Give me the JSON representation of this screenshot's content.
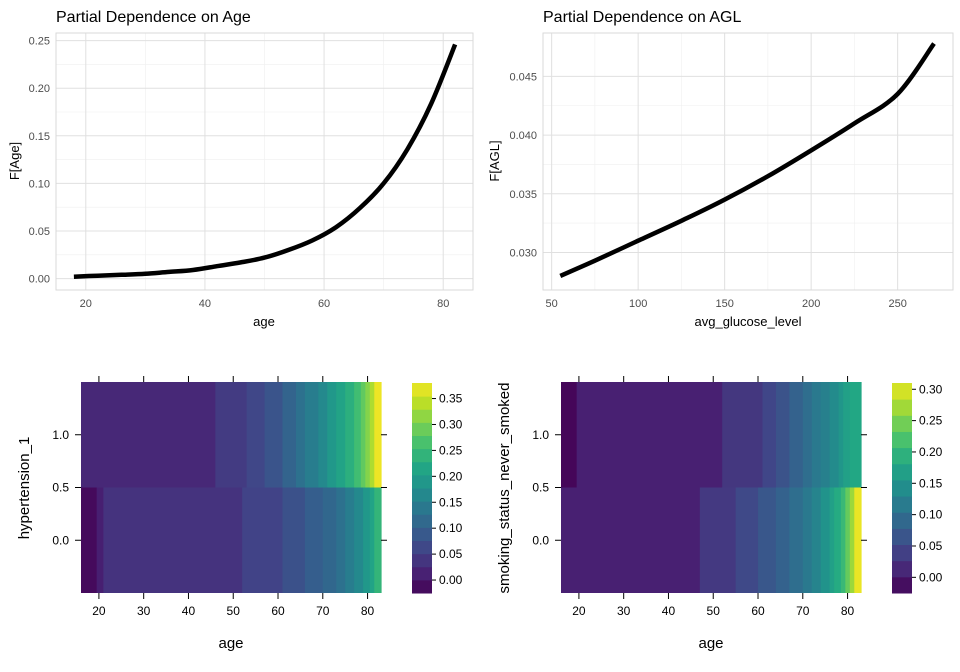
{
  "chart_data": [
    {
      "type": "line",
      "title": "Partial Dependence on Age",
      "xlabel": "age",
      "ylabel": "F[Age]",
      "xlim": [
        15,
        85
      ],
      "ylim": [
        -0.012,
        0.258
      ],
      "xticks": [
        20,
        40,
        60,
        80
      ],
      "yticks": [
        0.0,
        0.05,
        0.1,
        0.15,
        0.2,
        0.25
      ],
      "ytick_labels": [
        "0.00",
        "0.05",
        "0.10",
        "0.15",
        "0.20",
        "0.25"
      ],
      "grid": true,
      "x": [
        18,
        22,
        26,
        30,
        34,
        38,
        42,
        46,
        50,
        54,
        58,
        62,
        66,
        70,
        74,
        78,
        82
      ],
      "y": [
        0.002,
        0.003,
        0.004,
        0.005,
        0.007,
        0.009,
        0.013,
        0.017,
        0.022,
        0.03,
        0.04,
        0.054,
        0.074,
        0.1,
        0.136,
        0.184,
        0.246
      ]
    },
    {
      "type": "line",
      "title": "Partial Dependence on AGL",
      "xlabel": "avg_glucose_level",
      "ylabel": "F[AGL]",
      "xlim": [
        45,
        282
      ],
      "ylim": [
        0.0268,
        0.0487
      ],
      "xticks": [
        50,
        100,
        150,
        200,
        250
      ],
      "yticks": [
        0.03,
        0.035,
        0.04,
        0.045
      ],
      "ytick_labels": [
        "0.030",
        "0.035",
        "0.040",
        "0.045"
      ],
      "grid": true,
      "x": [
        55,
        75,
        100,
        125,
        150,
        175,
        200,
        225,
        250,
        271
      ],
      "y": [
        0.028,
        0.0293,
        0.031,
        0.0327,
        0.0345,
        0.0365,
        0.0387,
        0.041,
        0.0435,
        0.0478
      ]
    },
    {
      "type": "heatmap",
      "xlabel": "age",
      "ylabel": "hypertension_1",
      "xlim": [
        16,
        83
      ],
      "ylim": [
        -0.5,
        1.5
      ],
      "xticks": [
        20,
        30,
        40,
        50,
        60,
        70,
        80
      ],
      "yticks": [
        0.0,
        0.5,
        1.0
      ],
      "ytick_labels": [
        "0.0",
        "0.5",
        "1.0"
      ],
      "colorbar": {
        "min": -0.025,
        "max": 0.38,
        "ticks": [
          0.0,
          0.05,
          0.1,
          0.15,
          0.2,
          0.25,
          0.3,
          0.35
        ],
        "tick_labels": [
          "0.00",
          "0.05",
          "0.10",
          "0.15",
          "0.20",
          "0.25",
          "0.30",
          "0.35"
        ]
      },
      "rows": [
        {
          "y_range": [
            -0.5,
            0.5
          ],
          "x_edges": [
            16,
            19.5,
            21,
            52,
            61,
            66,
            70,
            73,
            75,
            77,
            79,
            80.5,
            81.5,
            83
          ],
          "values": [
            -0.015,
            0.01,
            0.035,
            0.055,
            0.075,
            0.095,
            0.11,
            0.125,
            0.145,
            0.165,
            0.19,
            0.21,
            0.24
          ]
        },
        {
          "y_range": [
            0.5,
            1.5
          ],
          "x_edges": [
            16,
            46,
            53,
            57,
            61,
            64,
            66,
            69,
            71,
            73,
            75,
            77,
            78.5,
            79.5,
            80.5,
            81.5,
            83
          ],
          "values": [
            0.02,
            0.045,
            0.06,
            0.08,
            0.105,
            0.125,
            0.145,
            0.165,
            0.19,
            0.21,
            0.23,
            0.255,
            0.28,
            0.305,
            0.33,
            0.37
          ]
        }
      ]
    },
    {
      "type": "heatmap",
      "xlabel": "age",
      "ylabel": "smoking_status_never_smoked",
      "xlim": [
        16,
        83
      ],
      "ylim": [
        -0.5,
        1.5
      ],
      "xticks": [
        20,
        30,
        40,
        50,
        60,
        70,
        80
      ],
      "yticks": [
        0.0,
        0.5,
        1.0
      ],
      "ytick_labels": [
        "0.0",
        "0.5",
        "1.0"
      ],
      "colorbar": {
        "min": -0.025,
        "max": 0.31,
        "ticks": [
          0.0,
          0.05,
          0.1,
          0.15,
          0.2,
          0.25,
          0.3
        ],
        "tick_labels": [
          "0.00",
          "0.05",
          "0.10",
          "0.15",
          "0.20",
          "0.25",
          "0.30"
        ]
      },
      "rows": [
        {
          "y_range": [
            -0.5,
            0.5
          ],
          "x_edges": [
            16,
            47,
            55,
            60,
            64,
            67,
            70,
            72,
            74,
            76,
            77,
            78.5,
            79.5,
            80.5,
            81.5,
            83
          ],
          "values": [
            0.005,
            0.03,
            0.048,
            0.065,
            0.08,
            0.095,
            0.11,
            0.125,
            0.145,
            0.165,
            0.18,
            0.2,
            0.23,
            0.26,
            0.3
          ]
        },
        {
          "y_range": [
            0.5,
            1.5
          ],
          "x_edges": [
            16,
            19.5,
            52,
            61,
            64,
            67,
            70,
            72,
            74,
            76,
            78,
            79,
            80.5,
            83
          ],
          "values": [
            -0.02,
            0.005,
            0.028,
            0.045,
            0.06,
            0.08,
            0.095,
            0.11,
            0.12,
            0.135,
            0.15,
            0.165,
            0.175
          ]
        }
      ]
    }
  ]
}
